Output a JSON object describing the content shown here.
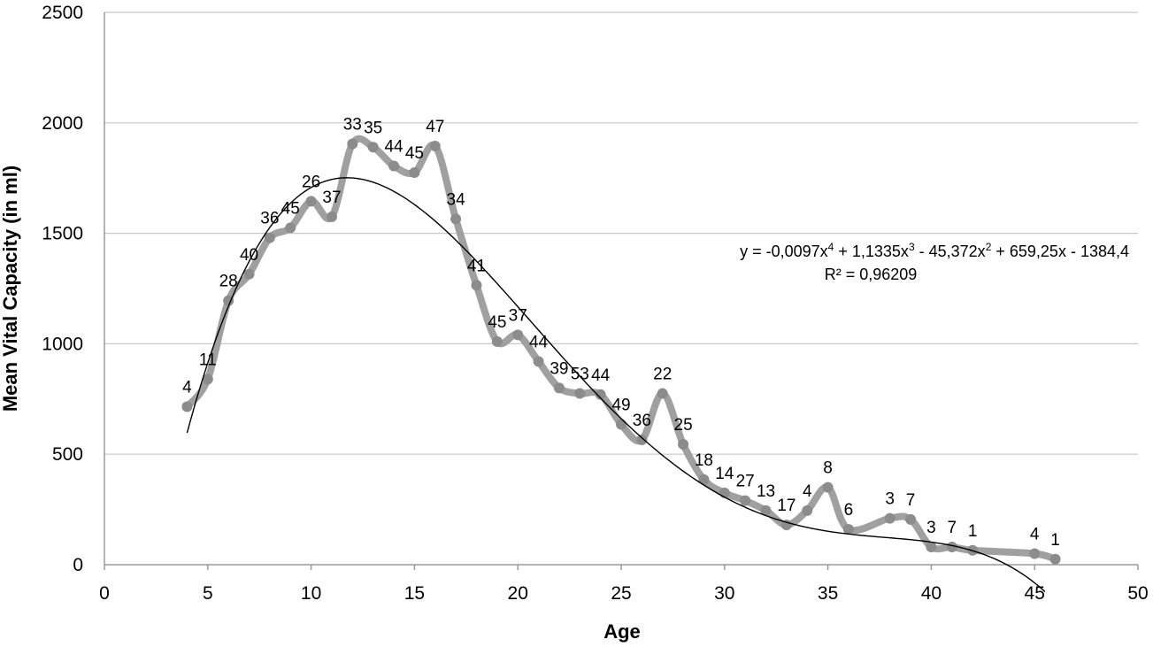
{
  "chart_data": {
    "type": "line",
    "xlabel": "Age",
    "ylabel": "Mean Vital Capacity (in ml)",
    "xlim": [
      0,
      50
    ],
    "ylim": [
      0,
      2500
    ],
    "x_ticks": [
      0,
      5,
      10,
      15,
      20,
      25,
      30,
      35,
      40,
      45,
      50
    ],
    "y_ticks": [
      0,
      500,
      1000,
      1500,
      2000,
      2500
    ],
    "grid": "horizontal",
    "series": [
      {
        "type": "line",
        "smooth": true,
        "color": "#a0a0a0",
        "x": [
          4,
          5,
          6,
          7,
          8,
          9,
          10,
          11,
          12,
          13,
          14,
          15,
          16,
          17,
          18,
          19,
          20,
          21,
          22,
          23,
          24,
          25,
          26,
          27,
          28,
          29,
          30,
          31,
          32,
          33,
          34,
          35,
          36,
          38,
          39,
          40,
          41,
          42,
          45,
          46
        ],
        "y": [
          715,
          840,
          1195,
          1315,
          1480,
          1525,
          1645,
          1575,
          1905,
          1890,
          1805,
          1775,
          1895,
          1565,
          1265,
          1010,
          1040,
          920,
          800,
          775,
          770,
          635,
          565,
          775,
          545,
          385,
          325,
          290,
          245,
          180,
          245,
          350,
          160,
          210,
          205,
          80,
          80,
          65,
          50,
          25
        ],
        "labels": [
          "4",
          "11",
          "28",
          "40",
          "36",
          "45",
          "26",
          "37",
          "33",
          "35",
          "44",
          "45",
          "47",
          "34",
          "41",
          "45",
          "37",
          "44",
          "39",
          "53",
          "44",
          "49",
          "36",
          "22",
          "25",
          "18",
          "14",
          "27",
          "13",
          "17",
          "4",
          "8",
          "6",
          "3",
          "7",
          "3",
          "7",
          "1",
          "4",
          "1"
        ]
      }
    ],
    "trendline": {
      "type": "polynomial",
      "color": "#000000",
      "coefficients": [
        -0.0097,
        1.1335,
        -45.372,
        659.25,
        -1384.4
      ],
      "x_range": [
        4,
        45.5
      ],
      "equation": "y = -0,0097x",
      "equation_parts": [
        "y = -0,0097x",
        "4",
        " + 1,1335x",
        "3",
        " - 45,372x",
        "2",
        " + 659,25x - 1384,4"
      ],
      "r_squared": "R² = 0,96209"
    }
  }
}
